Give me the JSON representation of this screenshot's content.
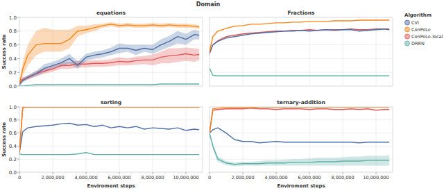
{
  "chart_data": {
    "type": "line",
    "title": "Domain",
    "legend_title": "Algorithm",
    "x_label": "Enviroment steps",
    "y_label": "Success rate",
    "grid": true,
    "legend": "right",
    "x": [
      0,
      200000,
      500000,
      1000000,
      1500000,
      2000000,
      2500000,
      3000000,
      3500000,
      4000000,
      4500000,
      5000000,
      5500000,
      6000000,
      6500000,
      7000000,
      7500000,
      8000000,
      8500000,
      9000000,
      9500000,
      10000000,
      10500000,
      10800000
    ],
    "xlim": [
      0,
      11000000
    ],
    "xticks": [
      {
        "value": 0,
        "label": "0"
      },
      {
        "value": 2000000,
        "label": "2,000,000"
      },
      {
        "value": 4000000,
        "label": "4,000,000"
      },
      {
        "value": 6000000,
        "label": "6,000,000"
      },
      {
        "value": 8000000,
        "label": "8,000,000"
      },
      {
        "value": 10000000,
        "label": "10,000,000"
      }
    ],
    "ylim": [
      0,
      1
    ],
    "yticks": [
      {
        "value": 0,
        "label": "0.0"
      },
      {
        "value": 0.2,
        "label": "0.2"
      },
      {
        "value": 0.4,
        "label": "0.4"
      },
      {
        "value": 0.6,
        "label": "0.6"
      },
      {
        "value": 0.8,
        "label": "0.8"
      },
      {
        "value": 1,
        "label": "1.0"
      }
    ],
    "panels": [
      {
        "title": "equations",
        "series": [
          {
            "name": "CVI",
            "color": "#4c6fa6",
            "values": [
              0.02,
              0.08,
              0.13,
              0.18,
              0.26,
              0.3,
              0.34,
              0.4,
              0.3,
              0.42,
              0.45,
              0.47,
              0.5,
              0.55,
              0.55,
              0.52,
              0.55,
              0.53,
              0.6,
              0.65,
              0.72,
              0.68,
              0.75,
              0.74
            ],
            "lower": [
              0,
              0.05,
              0.1,
              0.14,
              0.2,
              0.25,
              0.28,
              0.33,
              0.25,
              0.37,
              0.4,
              0.42,
              0.45,
              0.48,
              0.5,
              0.45,
              0.5,
              0.47,
              0.52,
              0.57,
              0.62,
              0.6,
              0.68,
              0.68
            ],
            "upper": [
              0.04,
              0.11,
              0.16,
              0.22,
              0.32,
              0.35,
              0.4,
              0.47,
              0.36,
              0.47,
              0.5,
              0.52,
              0.56,
              0.62,
              0.6,
              0.6,
              0.6,
              0.6,
              0.68,
              0.73,
              0.8,
              0.76,
              0.82,
              0.8
            ]
          },
          {
            "name": "ConPoLe",
            "color": "#f58518",
            "values": [
              0.03,
              0.25,
              0.45,
              0.6,
              0.62,
              0.62,
              0.62,
              0.68,
              0.8,
              0.82,
              0.85,
              0.88,
              0.9,
              0.88,
              0.89,
              0.88,
              0.88,
              0.89,
              0.88,
              0.89,
              0.88,
              0.88,
              0.87,
              0.86
            ],
            "lower": [
              0,
              0.15,
              0.3,
              0.45,
              0.5,
              0.5,
              0.5,
              0.55,
              0.72,
              0.77,
              0.8,
              0.85,
              0.87,
              0.85,
              0.86,
              0.85,
              0.85,
              0.86,
              0.85,
              0.86,
              0.85,
              0.85,
              0.84,
              0.83
            ],
            "upper": [
              0.06,
              0.35,
              0.6,
              0.8,
              0.85,
              0.82,
              0.82,
              0.82,
              0.88,
              0.88,
              0.9,
              0.91,
              0.93,
              0.91,
              0.92,
              0.91,
              0.91,
              0.92,
              0.91,
              0.92,
              0.91,
              0.91,
              0.9,
              0.89
            ]
          },
          {
            "name": "ConPoLe-local",
            "color": "#e45756",
            "values": [
              0.05,
              0.1,
              0.12,
              0.18,
              0.22,
              0.25,
              0.3,
              0.3,
              0.32,
              0.32,
              0.33,
              0.33,
              0.34,
              0.36,
              0.35,
              0.37,
              0.38,
              0.38,
              0.42,
              0.44,
              0.45,
              0.47,
              0.45,
              0.46
            ],
            "lower": [
              0.03,
              0.07,
              0.09,
              0.14,
              0.18,
              0.21,
              0.25,
              0.25,
              0.27,
              0.27,
              0.28,
              0.28,
              0.29,
              0.3,
              0.3,
              0.31,
              0.32,
              0.3,
              0.33,
              0.33,
              0.35,
              0.37,
              0.35,
              0.38
            ],
            "upper": [
              0.08,
              0.13,
              0.15,
              0.22,
              0.26,
              0.29,
              0.35,
              0.35,
              0.37,
              0.37,
              0.38,
              0.38,
              0.39,
              0.42,
              0.4,
              0.43,
              0.44,
              0.46,
              0.5,
              0.55,
              0.55,
              0.56,
              0.55,
              0.54
            ]
          },
          {
            "name": "DRRN",
            "color": "#5fb0a8",
            "values": [
              0,
              0,
              0.01,
              0.02,
              0.02,
              0.02,
              0.02,
              0.02,
              0.02,
              0.02,
              0.02,
              0.02,
              0.02,
              0.02,
              0.02,
              0.02,
              0.02,
              0.02,
              0.03,
              0.03,
              0.03,
              0.03,
              0.03,
              0.03
            ]
          }
        ]
      },
      {
        "title": "Fractions",
        "series": [
          {
            "name": "CVI",
            "color": "#4c6fa6",
            "values": [
              0.48,
              0.6,
              0.65,
              0.7,
              0.72,
              0.74,
              0.76,
              0.77,
              0.78,
              0.79,
              0.8,
              0.8,
              0.81,
              0.8,
              0.81,
              0.82,
              0.81,
              0.82,
              0.82,
              0.8,
              0.81,
              0.82,
              0.83,
              0.82
            ]
          },
          {
            "name": "ConPoLe",
            "color": "#f58518",
            "values": [
              0.5,
              0.72,
              0.8,
              0.84,
              0.87,
              0.88,
              0.9,
              0.9,
              0.91,
              0.92,
              0.92,
              0.93,
              0.93,
              0.94,
              0.94,
              0.94,
              0.95,
              0.95,
              0.95,
              0.96,
              0.96,
              0.96,
              0.96,
              0.96
            ]
          },
          {
            "name": "ConPoLe-local",
            "color": "#e45756",
            "values": [
              0.47,
              0.6,
              0.66,
              0.72,
              0.74,
              0.76,
              0.77,
              0.78,
              0.79,
              0.8,
              0.8,
              0.81,
              0.81,
              0.82,
              0.81,
              0.82,
              0.82,
              0.82,
              0.83,
              0.82,
              0.82,
              0.83,
              0.83,
              0.83
            ]
          },
          {
            "name": "DRRN",
            "color": "#5fb0a8",
            "values": [
              0.26,
              0.16,
              0.15,
              0.15,
              0.15,
              0.15,
              0.15,
              0.15,
              0.15,
              0.15,
              0.15,
              0.15,
              0.15,
              0.15,
              0.15,
              0.15,
              0.15,
              0.15,
              0.15,
              0.15,
              0.15,
              0.15,
              0.15,
              0.15
            ]
          }
        ]
      },
      {
        "title": "sorting",
        "series": [
          {
            "name": "CVI",
            "color": "#4c6fa6",
            "values": [
              0.3,
              0.62,
              0.68,
              0.7,
              0.71,
              0.72,
              0.74,
              0.75,
              0.72,
              0.73,
              0.7,
              0.72,
              0.68,
              0.7,
              0.68,
              0.7,
              0.66,
              0.68,
              0.67,
              0.66,
              0.68,
              0.64,
              0.66,
              0.65
            ]
          },
          {
            "name": "ConPoLe",
            "color": "#f58518",
            "values": [
              0.3,
              1,
              1,
              1,
              1,
              1,
              1,
              1,
              1,
              1,
              1,
              1,
              1,
              1,
              1,
              1,
              1,
              1,
              1,
              1,
              1,
              1,
              1,
              1
            ]
          },
          {
            "name": "ConPoLe-local",
            "color": "#e45756",
            "values": [
              0.3,
              0.99,
              1,
              1,
              1,
              1,
              1,
              1,
              1,
              1,
              1,
              1,
              1,
              1,
              1,
              1,
              1,
              1,
              1,
              1,
              1,
              1,
              1,
              1
            ]
          },
          {
            "name": "DRRN",
            "color": "#5fb0a8",
            "values": [
              0.28,
              0.27,
              0.27,
              0.27,
              0.27,
              0.27,
              0.27,
              0.27,
              0.28,
              0.3,
              0.27,
              0.27,
              0.27,
              0.27,
              0.27,
              0.27,
              0.27,
              0.27,
              0.27,
              0.27,
              0.27,
              0.27,
              0.27,
              0.27
            ]
          }
        ]
      },
      {
        "title": "ternary-addition",
        "series": [
          {
            "name": "CVI",
            "color": "#4c6fa6",
            "values": [
              0.6,
              0.65,
              0.68,
              0.6,
              0.5,
              0.47,
              0.47,
              0.45,
              0.46,
              0.47,
              0.46,
              0.46,
              0.46,
              0.46,
              0.46,
              0.46,
              0.46,
              0.46,
              0.46,
              0.45,
              0.46,
              0.46,
              0.46,
              0.46
            ]
          },
          {
            "name": "ConPoLe",
            "color": "#f58518",
            "values": [
              0.6,
              0.97,
              0.98,
              0.99,
              0.99,
              0.99,
              0.99,
              1,
              1,
              1,
              1,
              1,
              1,
              1,
              1,
              1,
              1,
              1,
              1,
              1,
              1,
              1,
              1,
              1
            ]
          },
          {
            "name": "ConPoLe-local",
            "color": "#e45756",
            "values": [
              0.6,
              0.95,
              0.96,
              0.97,
              0.97,
              0.97,
              0.98,
              0.97,
              0.97,
              0.96,
              0.97,
              0.97,
              0.97,
              0.96,
              0.97,
              0.97,
              0.96,
              0.96,
              0.97,
              0.96,
              0.97,
              0.95,
              0.96,
              0.96
            ]
          },
          {
            "name": "DRRN",
            "color": "#5fb0a8",
            "values": [
              0.6,
              0.4,
              0.2,
              0.14,
              0.12,
              0.13,
              0.13,
              0.13,
              0.14,
              0.14,
              0.14,
              0.15,
              0.15,
              0.15,
              0.16,
              0.16,
              0.16,
              0.17,
              0.17,
              0.17,
              0.18,
              0.18,
              0.18,
              0.18
            ],
            "lower": [
              0.58,
              0.35,
              0.16,
              0.11,
              0.09,
              0.1,
              0.1,
              0.1,
              0.1,
              0.1,
              0.1,
              0.1,
              0.1,
              0.1,
              0.1,
              0.1,
              0.1,
              0.1,
              0.1,
              0.1,
              0.1,
              0.1,
              0.1,
              0.1
            ],
            "upper": [
              0.62,
              0.45,
              0.24,
              0.17,
              0.15,
              0.16,
              0.16,
              0.17,
              0.18,
              0.18,
              0.19,
              0.2,
              0.2,
              0.21,
              0.22,
              0.22,
              0.22,
              0.23,
              0.24,
              0.24,
              0.25,
              0.25,
              0.25,
              0.26
            ]
          }
        ]
      }
    ]
  }
}
